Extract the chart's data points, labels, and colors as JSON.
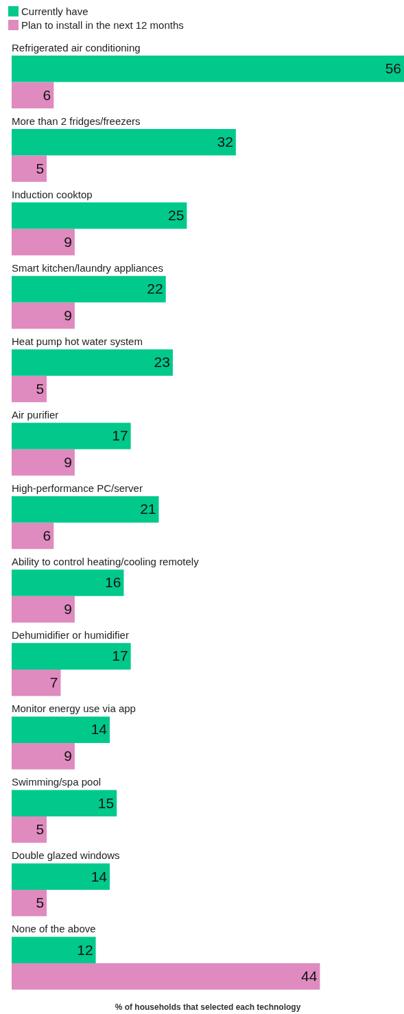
{
  "chart_data": {
    "type": "bar",
    "orientation": "horizontal",
    "xlabel": "% of households that selected each technology",
    "categories": [
      "Refrigerated air conditioning",
      "More than 2 fridges/freezers",
      "Induction cooktop",
      "Smart kitchen/laundry appliances",
      "Heat pump hot water system",
      "Air purifier",
      "High-performance PC/server",
      "Ability to control heating/cooling remotely",
      "Dehumidifier or humidifier",
      "Monitor energy use via app",
      "Swimming/spa pool",
      "Double glazed windows",
      "None of the above"
    ],
    "series": [
      {
        "name": "Currently have",
        "color": "#00c98b",
        "values": [
          56,
          32,
          25,
          22,
          23,
          17,
          21,
          16,
          17,
          14,
          15,
          14,
          12
        ]
      },
      {
        "name": "Plan to install in the next 12 months",
        "color": "#df8bbf",
        "values": [
          6,
          5,
          9,
          9,
          5,
          9,
          6,
          9,
          7,
          9,
          5,
          5,
          44
        ]
      }
    ],
    "xlim": [
      0,
      56
    ],
    "data_labels": true,
    "legend": "top left",
    "grid": false,
    "tick_labels": "y"
  }
}
